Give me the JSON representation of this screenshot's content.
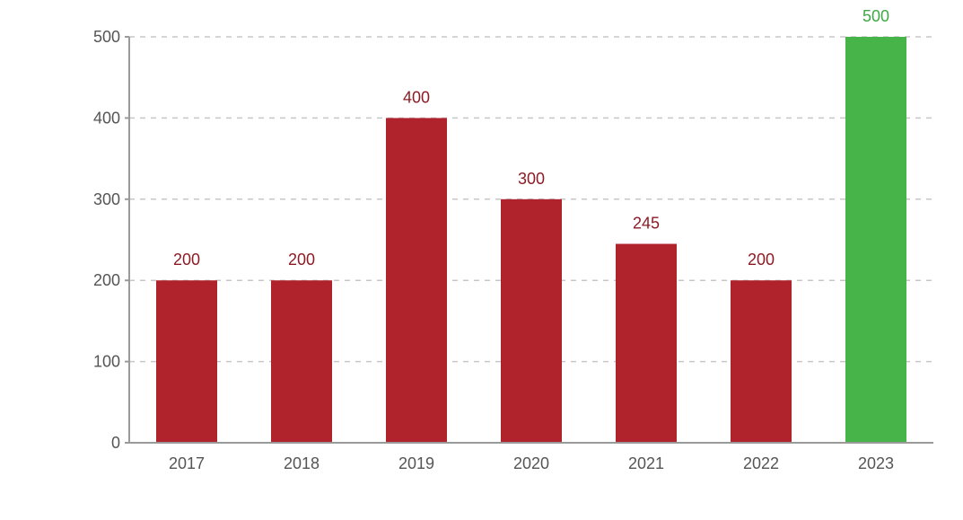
{
  "chart_data": {
    "type": "bar",
    "categories": [
      "2017",
      "2018",
      "2019",
      "2020",
      "2021",
      "2022",
      "2023"
    ],
    "values": [
      200,
      200,
      400,
      300,
      245,
      200,
      500
    ],
    "title": "",
    "xlabel": "",
    "ylabel": "",
    "ylim": [
      0,
      500
    ],
    "yticks": [
      0,
      100,
      200,
      300,
      400,
      500
    ],
    "grid": true,
    "colors": {
      "default_bar": "#B0232D",
      "highlight_bar": "#46B449",
      "default_label": "#8A1C25",
      "highlight_label": "#3FA845"
    },
    "highlight_index": 6
  }
}
